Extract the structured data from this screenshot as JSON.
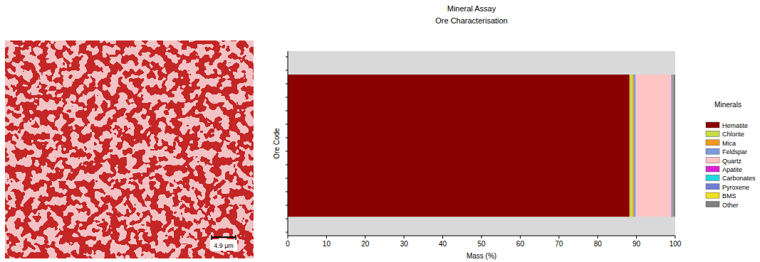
{
  "chart_data": {
    "type": "bar",
    "orientation": "horizontal",
    "stacked": true,
    "title": "Mineral Assay",
    "subtitle": "Ore Characterisation",
    "x_label": "Mass (%)",
    "y_label": "Ore Code",
    "legend_title": "Minerals",
    "categories": [
      null
    ],
    "series": [
      {
        "name": "Hematite",
        "color": "#8b0000",
        "values": [
          88.2
        ]
      },
      {
        "name": "Chlorite",
        "color": "#c8dc46",
        "values": [
          0.8
        ]
      },
      {
        "name": "Mica",
        "color": "#f29a1e",
        "values": [
          0.3
        ]
      },
      {
        "name": "Feldspar",
        "color": "#7b9be0",
        "values": [
          0.5
        ]
      },
      {
        "name": "Quartz",
        "color": "#ffc4c4",
        "values": [
          9.2
        ]
      },
      {
        "name": "Apatite",
        "color": "#e020d8",
        "values": [
          0.05
        ]
      },
      {
        "name": "Carbonates",
        "color": "#22d8e0",
        "values": [
          0.05
        ]
      },
      {
        "name": "Pyroxene",
        "color": "#6f7fd8",
        "values": [
          0.3
        ]
      },
      {
        "name": "BMS",
        "color": "#f0e020",
        "values": [
          0.1
        ]
      },
      {
        "name": "Other",
        "color": "#7f7f7f",
        "values": [
          0.5
        ]
      }
    ],
    "xlim": [
      0,
      100
    ],
    "xticks": [
      0,
      10,
      20,
      30,
      40,
      50,
      60,
      70,
      80,
      90,
      100
    ],
    "legend": "right",
    "tick_labels": "x",
    "grid": false
  },
  "image": {
    "scale_bar": "4.9 µm"
  }
}
